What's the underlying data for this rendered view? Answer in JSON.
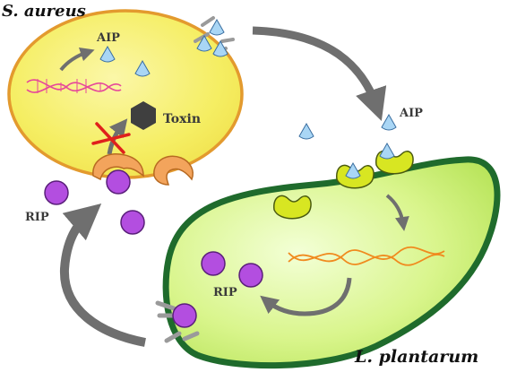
{
  "labels": {
    "s_aureus": "S. aureus",
    "aip_inside": "AIP",
    "toxin": "Toxin",
    "aip_outside": "AIP",
    "rip_left": "RIP",
    "rip_inside": "RIP",
    "l_plantarum": "L. plantarum"
  },
  "colors": {
    "s_aureus_fill": "#f5ee63",
    "s_aureus_border": "#e39a2e",
    "l_plantarum_fill": "#d9f58c",
    "l_plantarum_border": "#1f6b2c",
    "aip": "#a9d6f5",
    "rip": "#b34ee0",
    "toxin": "#3f3f3f",
    "dna_s_aureus": "#e6479a",
    "dna_l_plantarum": "#f08a1e",
    "arrow": "#6f6f6f",
    "inhibit": "#e0201c",
    "receptor_s_aureus": "#f3a45c",
    "receptor_l_plantarum": "#d8e622"
  },
  "icons": {
    "toxin": "hexagon-icon",
    "inhibition": "red-x-icon"
  }
}
